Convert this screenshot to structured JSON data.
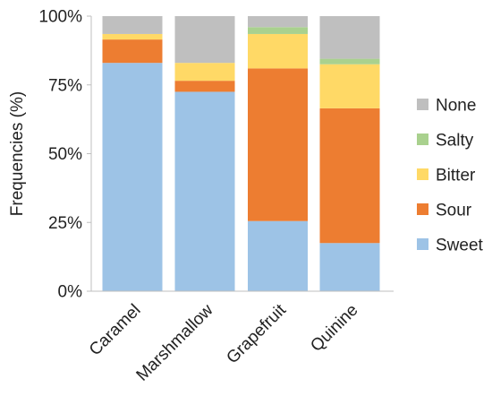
{
  "chart_data": {
    "type": "bar",
    "stacked": true,
    "normalized": true,
    "categories": [
      "Caramel",
      "Marshmallow",
      "Grapefruit",
      "Quinine"
    ],
    "series": [
      {
        "name": "Sweet",
        "color": "#9DC3E6",
        "values": [
          83,
          72.5,
          25.5,
          17.5
        ]
      },
      {
        "name": "Sour",
        "color": "#ED7D31",
        "values": [
          8.5,
          4,
          55.5,
          49
        ]
      },
      {
        "name": "Bitter",
        "color": "#FFD966",
        "values": [
          2,
          6.5,
          12.5,
          16
        ]
      },
      {
        "name": "Salty",
        "color": "#A9D18E",
        "values": [
          0,
          0,
          2.5,
          2
        ]
      },
      {
        "name": "None",
        "color": "#BFBFBF",
        "values": [
          6.5,
          17,
          4,
          15.5
        ]
      }
    ],
    "ylabel": "Frequencies (%)",
    "xlabel": "",
    "ylim": [
      0,
      100
    ],
    "yticks": [
      "0%",
      "25%",
      "50%",
      "75%",
      "100%"
    ],
    "legend_position": "right",
    "legend_order": [
      "None",
      "Salty",
      "Bitter",
      "Sour",
      "Sweet"
    ],
    "grid": false
  }
}
